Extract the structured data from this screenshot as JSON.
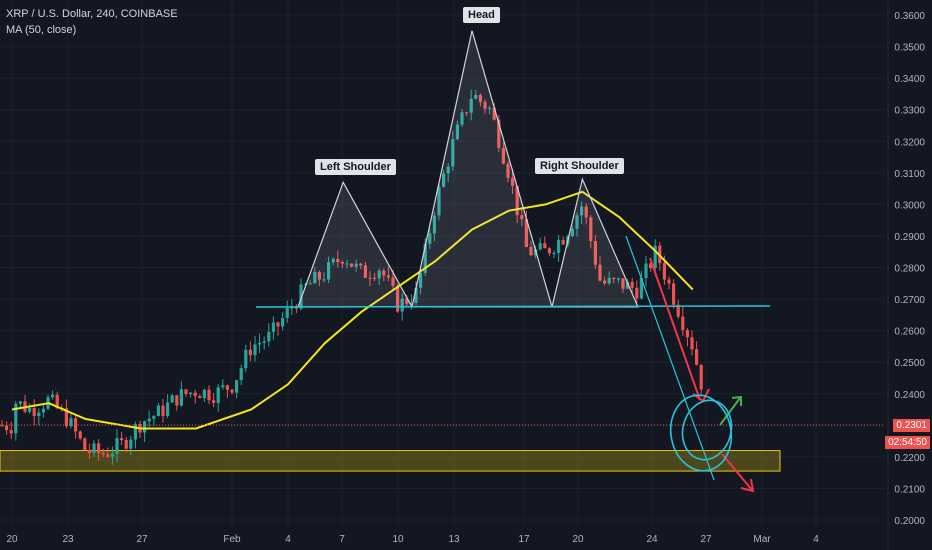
{
  "header": {
    "symbol": "XRP / U.S. Dollar, 240, COINBASE",
    "indicator": "MA (50, close)"
  },
  "annotations": {
    "head": "Head",
    "left_shoulder": "Left Shoulder",
    "right_shoulder": "Right Shoulder"
  },
  "price_tags": {
    "last_price": "0.2301",
    "countdown": "02:54:50"
  },
  "colors": {
    "background": "#131722",
    "candle_up": "#26a69a",
    "candle_down": "#ef5350",
    "ma_line": "#f5e61b",
    "neckline": "#26c6da",
    "support_zone": "#b8a012",
    "arrow_down": "#f23645",
    "arrow_up": "#4caf50",
    "pattern_outline": "#d1d4dc"
  },
  "chart_data": {
    "type": "candlestick",
    "symbol": "XRP / U.S. Dollar",
    "interval": "240",
    "exchange": "COINBASE",
    "y_axis": {
      "ticks": [
        "0.3600",
        "0.3500",
        "0.3400",
        "0.3300",
        "0.3200",
        "0.3100",
        "0.3000",
        "0.2900",
        "0.2800",
        "0.2700",
        "0.2600",
        "0.2500",
        "0.2400",
        "0.2300",
        "0.2200",
        "0.2100",
        "0.2000"
      ],
      "range": [
        0.2,
        0.362
      ]
    },
    "x_axis": {
      "ticks": [
        "20",
        "23",
        "27",
        "Feb",
        "4",
        "7",
        "10",
        "13",
        "17",
        "20",
        "24",
        "27",
        "Mar",
        "4"
      ]
    },
    "ohlc_path": [
      [
        "Jan 20",
        0.238
      ],
      [
        "Jan 21",
        0.235
      ],
      [
        "Jan 22",
        0.238
      ],
      [
        "Jan 23",
        0.232
      ],
      [
        "Jan 24",
        0.222
      ],
      [
        "Jan 25",
        0.221
      ],
      [
        "Jan 26",
        0.224
      ],
      [
        "Jan 27",
        0.231
      ],
      [
        "Jan 28",
        0.234
      ],
      [
        "Jan 29",
        0.239
      ],
      [
        "Jan 30",
        0.241
      ],
      [
        "Jan 31",
        0.24
      ],
      [
        "Feb 1",
        0.243
      ],
      [
        "Feb 2",
        0.255
      ],
      [
        "Feb 3",
        0.258
      ],
      [
        "Feb 4",
        0.266
      ],
      [
        "Feb 5",
        0.274
      ],
      [
        "Feb 6",
        0.278
      ],
      [
        "Feb 7",
        0.284
      ],
      [
        "Feb 8",
        0.278
      ],
      [
        "Feb 9",
        0.28
      ],
      [
        "Feb 10",
        0.268
      ],
      [
        "Feb 11",
        0.272
      ],
      [
        "Feb 12",
        0.3
      ],
      [
        "Feb 13",
        0.32
      ],
      [
        "Feb 14",
        0.335
      ],
      [
        "Feb 15",
        0.33
      ],
      [
        "Feb 16",
        0.31
      ],
      [
        "Feb 17",
        0.285
      ],
      [
        "Feb 18",
        0.285
      ],
      [
        "Feb 19",
        0.29
      ],
      [
        "Feb 20",
        0.3
      ],
      [
        "Feb 21",
        0.275
      ],
      [
        "Feb 22",
        0.275
      ],
      [
        "Feb 23",
        0.273
      ],
      [
        "Feb 24",
        0.285
      ],
      [
        "Feb 25",
        0.27
      ],
      [
        "Feb 26",
        0.255
      ],
      [
        "Feb 27",
        0.23
      ]
    ],
    "ma_50": [
      [
        "Jan 20",
        0.235
      ],
      [
        "Jan 22",
        0.237
      ],
      [
        "Jan 24",
        0.232
      ],
      [
        "Jan 27",
        0.229
      ],
      [
        "Jan 30",
        0.229
      ],
      [
        "Feb 2",
        0.235
      ],
      [
        "Feb 4",
        0.243
      ],
      [
        "Feb 6",
        0.256
      ],
      [
        "Feb 8",
        0.266
      ],
      [
        "Feb 10",
        0.274
      ],
      [
        "Feb 12",
        0.282
      ],
      [
        "Feb 14",
        0.292
      ],
      [
        "Feb 16",
        0.298
      ],
      [
        "Feb 18",
        0.3
      ],
      [
        "Feb 20",
        0.304
      ],
      [
        "Feb 22",
        0.296
      ],
      [
        "Feb 24",
        0.285
      ],
      [
        "Feb 26",
        0.273
      ]
    ],
    "neckline": 0.2675,
    "support_zone": [
      0.2155,
      0.222
    ],
    "head_and_shoulders": {
      "left_shoulder": [
        "Feb 7",
        0.307
      ],
      "head": [
        "Feb 14",
        0.355
      ],
      "right_shoulder": [
        "Feb 20",
        0.308
      ]
    },
    "last_price": 0.2301
  }
}
